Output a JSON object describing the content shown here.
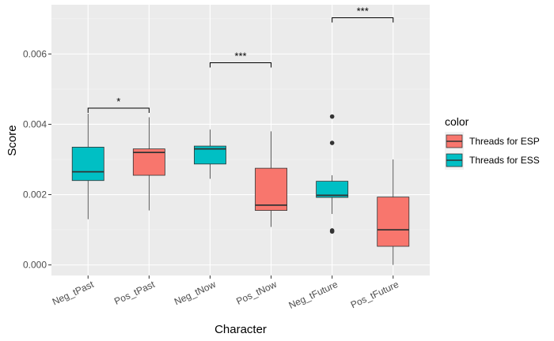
{
  "chart_data": {
    "type": "boxplot",
    "xlabel": "Character",
    "ylabel": "Score",
    "ylim": [
      -0.0003,
      0.0074
    ],
    "yticks": [
      "0.000",
      "0.002",
      "0.004",
      "0.006"
    ],
    "ytick_values": [
      0,
      0.002,
      0.004,
      0.006
    ],
    "categories": [
      "Neg_tPast",
      "Pos_tPast",
      "Neg_tNow",
      "Pos_tNow",
      "Neg_tFuture",
      "Pos_tFuture"
    ],
    "legend": {
      "title": "color",
      "position": "right",
      "entries": [
        {
          "label": "Threads for ESP",
          "color": "#F8766D"
        },
        {
          "label": "Threads for ESS",
          "color": "#00BFC4"
        }
      ]
    },
    "boxes": [
      {
        "category": "Neg_tPast",
        "group": "Threads for ESS",
        "min": 0.0013,
        "q1": 0.0024,
        "median": 0.00265,
        "q3": 0.00335,
        "max": 0.0043,
        "outliers": []
      },
      {
        "category": "Pos_tPast",
        "group": "Threads for ESP",
        "min": 0.00155,
        "q1": 0.00255,
        "median": 0.0032,
        "q3": 0.0033,
        "max": 0.0042,
        "outliers": []
      },
      {
        "category": "Neg_tNow",
        "group": "Threads for ESS",
        "min": 0.00245,
        "q1": 0.00287,
        "median": 0.0033,
        "q3": 0.00338,
        "max": 0.00385,
        "outliers": []
      },
      {
        "category": "Pos_tNow",
        "group": "Threads for ESP",
        "min": 0.00108,
        "q1": 0.00155,
        "median": 0.0017,
        "q3": 0.00275,
        "max": 0.0038,
        "outliers": []
      },
      {
        "category": "Neg_tFuture",
        "group": "Threads for ESS",
        "min": 0.00145,
        "q1": 0.00192,
        "median": 0.00198,
        "q3": 0.00238,
        "max": 0.00255,
        "outliers": [
          0.00422,
          0.00347,
          0.00098,
          0.00095
        ]
      },
      {
        "category": "Pos_tFuture",
        "group": "Threads for ESP",
        "min": 0.0,
        "q1": 0.00053,
        "median": 0.001,
        "q3": 0.00193,
        "max": 0.003,
        "outliers": []
      }
    ],
    "annotations": [
      {
        "from": "Neg_tPast",
        "to": "Pos_tPast",
        "label": "*",
        "y": 0.00446
      },
      {
        "from": "Neg_tNow",
        "to": "Pos_tNow",
        "label": "***",
        "y": 0.00575
      },
      {
        "from": "Neg_tFuture",
        "to": "Pos_tFuture",
        "label": "***",
        "y": 0.00703
      }
    ],
    "grid": true,
    "colors": {
      "panel_bg": "#EBEBEB",
      "grid_major": "#FFFFFF",
      "grid_minor": "#F5F5F5"
    }
  }
}
